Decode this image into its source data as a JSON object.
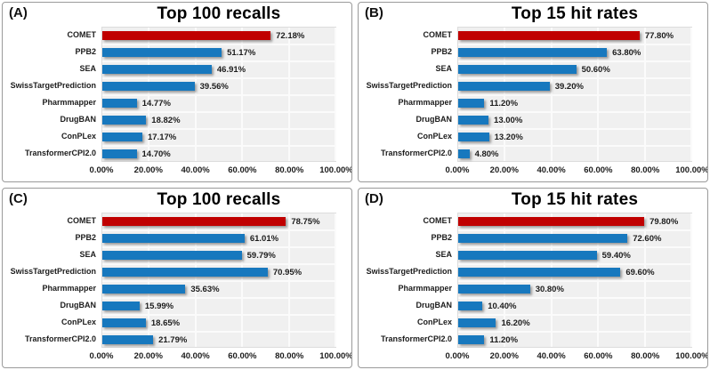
{
  "figure": {
    "background": "#FFFFFF",
    "panel_border_color": "#9A9A9A"
  },
  "colors": {
    "highlight_bar": "#C00000",
    "default_bar": "#1778BE",
    "text": "#1C1C1C",
    "plot_background": "#F0F0F0",
    "gridline": "#FBFBFB"
  },
  "x_axis": {
    "ticks": [
      "0.00%",
      "20.00%",
      "40.00%",
      "60.00%",
      "80.00%",
      "100.00%"
    ],
    "min": 0,
    "max": 100
  },
  "chart_data": [
    {
      "type": "bar",
      "orientation": "horizontal",
      "panel_label": "(A)",
      "title": "Top 100 recalls",
      "categories": [
        "COMET",
        "PPB2",
        "SEA",
        "SwissTargetPrediction",
        "Pharmmapper",
        "DrugBAN",
        "ConPLex",
        "TransformerCPI2.0"
      ],
      "values": [
        72.18,
        51.17,
        46.91,
        39.56,
        14.77,
        18.82,
        17.17,
        14.7
      ],
      "value_labels": [
        "72.18%",
        "51.17%",
        "46.91%",
        "39.56%",
        "14.77%",
        "18.82%",
        "17.17%",
        "14.70%"
      ],
      "highlight_index": 0,
      "xlim": [
        0,
        100
      ],
      "xticks": [
        "0.00%",
        "20.00%",
        "40.00%",
        "60.00%",
        "80.00%",
        "100.00%"
      ],
      "grid": true,
      "legend": false
    },
    {
      "type": "bar",
      "orientation": "horizontal",
      "panel_label": "(B)",
      "title": "Top 15 hit rates",
      "categories": [
        "COMET",
        "PPB2",
        "SEA",
        "SwissTargetPrediction",
        "Pharmmapper",
        "DrugBAN",
        "ConPLex",
        "TransformerCPI2.0"
      ],
      "values": [
        77.8,
        63.8,
        50.6,
        39.2,
        11.2,
        13.0,
        13.2,
        4.8
      ],
      "value_labels": [
        "77.80%",
        "63.80%",
        "50.60%",
        "39.20%",
        "11.20%",
        "13.00%",
        "13.20%",
        "4.80%"
      ],
      "highlight_index": 0,
      "xlim": [
        0,
        100
      ],
      "xticks": [
        "0.00%",
        "20.00%",
        "40.00%",
        "60.00%",
        "80.00%",
        "100.00%"
      ],
      "grid": true,
      "legend": false
    },
    {
      "type": "bar",
      "orientation": "horizontal",
      "panel_label": "(C)",
      "title": "Top 100 recalls",
      "categories": [
        "COMET",
        "PPB2",
        "SEA",
        "SwissTargetPrediction",
        "Pharmmapper",
        "DrugBAN",
        "ConPLex",
        "TransformerCPI2.0"
      ],
      "values": [
        78.75,
        61.01,
        59.79,
        70.95,
        35.63,
        15.99,
        18.65,
        21.79
      ],
      "value_labels": [
        "78.75%",
        "61.01%",
        "59.79%",
        "70.95%",
        "35.63%",
        "15.99%",
        "18.65%",
        "21.79%"
      ],
      "highlight_index": 0,
      "xlim": [
        0,
        100
      ],
      "xticks": [
        "0.00%",
        "20.00%",
        "40.00%",
        "60.00%",
        "80.00%",
        "100.00%"
      ],
      "grid": true,
      "legend": false
    },
    {
      "type": "bar",
      "orientation": "horizontal",
      "panel_label": "(D)",
      "title": "Top 15 hit rates",
      "categories": [
        "COMET",
        "PPB2",
        "SEA",
        "SwissTargetPrediction",
        "Pharmmapper",
        "DrugBAN",
        "ConPLex",
        "TransformerCPI2.0"
      ],
      "values": [
        79.8,
        72.6,
        59.4,
        69.6,
        30.8,
        10.4,
        16.2,
        11.2
      ],
      "value_labels": [
        "79.80%",
        "72.60%",
        "59.40%",
        "69.60%",
        "30.80%",
        "10.40%",
        "16.20%",
        "11.20%"
      ],
      "highlight_index": 0,
      "xlim": [
        0,
        100
      ],
      "xticks": [
        "0.00%",
        "20.00%",
        "40.00%",
        "60.00%",
        "80.00%",
        "100.00%"
      ],
      "grid": true,
      "legend": false
    }
  ]
}
